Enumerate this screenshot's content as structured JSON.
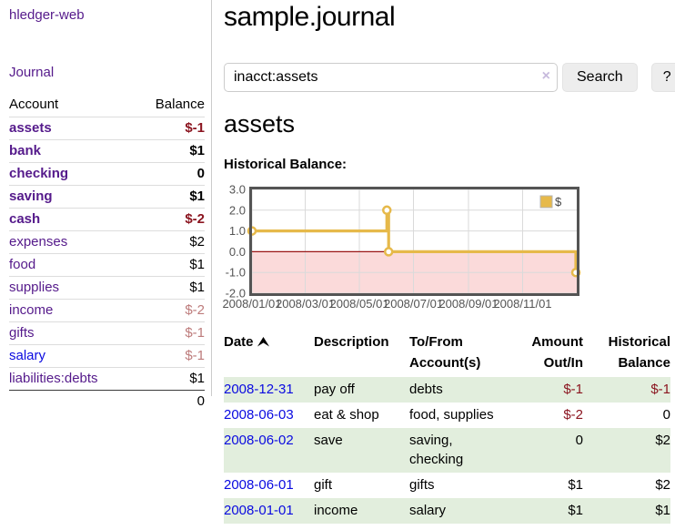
{
  "app": {
    "title": "hledger-web"
  },
  "colors": {
    "link_purple": "#551a8b",
    "link_blue": "#0a0ae0",
    "negative_strong": "#8b1520",
    "negative_light": "#bd7b7b",
    "row_stripe_green": "#e2eedd",
    "button_gray": "#ededed"
  },
  "sidebar": {
    "journal_link": "Journal",
    "accounts_header": {
      "account": "Account",
      "balance": "Balance"
    },
    "accounts": [
      {
        "name": "assets",
        "balance": "$-1"
      },
      {
        "name": "bank",
        "balance": "$1"
      },
      {
        "name": "checking",
        "balance": "0"
      },
      {
        "name": "saving",
        "balance": "$1"
      },
      {
        "name": "cash",
        "balance": "$-2"
      },
      {
        "name": "expenses",
        "balance": "$2"
      },
      {
        "name": "food",
        "balance": "$1"
      },
      {
        "name": "supplies",
        "balance": "$1"
      },
      {
        "name": "income",
        "balance": "$-2"
      },
      {
        "name": "gifts",
        "balance": "$-1"
      },
      {
        "name": "salary",
        "balance": "$-1"
      },
      {
        "name": "liabilities:debts",
        "balance": "$1"
      }
    ],
    "total": "0"
  },
  "header": {
    "title": "sample.journal"
  },
  "search": {
    "value": "inacct:assets",
    "clear_icon": "×",
    "button": "Search",
    "help_button": "?"
  },
  "account_page": {
    "title": "assets",
    "chart_label": "Historical Balance:"
  },
  "chart_data": {
    "type": "line",
    "step": true,
    "title": "Historical Balance:",
    "series": [
      {
        "name": "$",
        "color": "#e6b94a",
        "points": [
          {
            "date": "2008-01-01",
            "value": 1
          },
          {
            "date": "2008-06-01",
            "value": 2
          },
          {
            "date": "2008-06-03",
            "value": 0
          },
          {
            "date": "2008-12-31",
            "value": -1
          }
        ]
      }
    ],
    "x_range": [
      "2008-01-01",
      "2009-01-01"
    ],
    "y_range": [
      -2,
      3
    ],
    "x_ticks": [
      "2008/01/01",
      "2008/03/01",
      "2008/05/01",
      "2008/07/01",
      "2008/09/01",
      "2008/11/01"
    ],
    "y_ticks": [
      3.0,
      2.0,
      1.0,
      0.0,
      -1.0,
      -2.0
    ],
    "legend": {
      "label": "$",
      "position": "top-right"
    },
    "grid": true,
    "negative_region_color": "#fbdada",
    "zero_line_color": "#9c1616",
    "border_color": "#545454"
  },
  "register": {
    "columns": [
      "Date",
      "Description",
      "To/From Account(s)",
      "Amount Out/In",
      "Historical Balance"
    ],
    "rows": [
      {
        "date": "2008-12-31",
        "description": "pay off",
        "accounts": "debts",
        "amount": "$-1",
        "balance": "$-1"
      },
      {
        "date": "2008-06-03",
        "description": "eat & shop",
        "accounts": "food, supplies",
        "amount": "$-2",
        "balance": "0"
      },
      {
        "date": "2008-06-02",
        "description": "save",
        "accounts": "saving,\nchecking",
        "amount": "0",
        "balance": "$2"
      },
      {
        "date": "2008-06-01",
        "description": "gift",
        "accounts": "gifts",
        "amount": "$1",
        "balance": "$2"
      },
      {
        "date": "2008-01-01",
        "description": "income",
        "accounts": "salary",
        "amount": "$1",
        "balance": "$1"
      }
    ]
  }
}
